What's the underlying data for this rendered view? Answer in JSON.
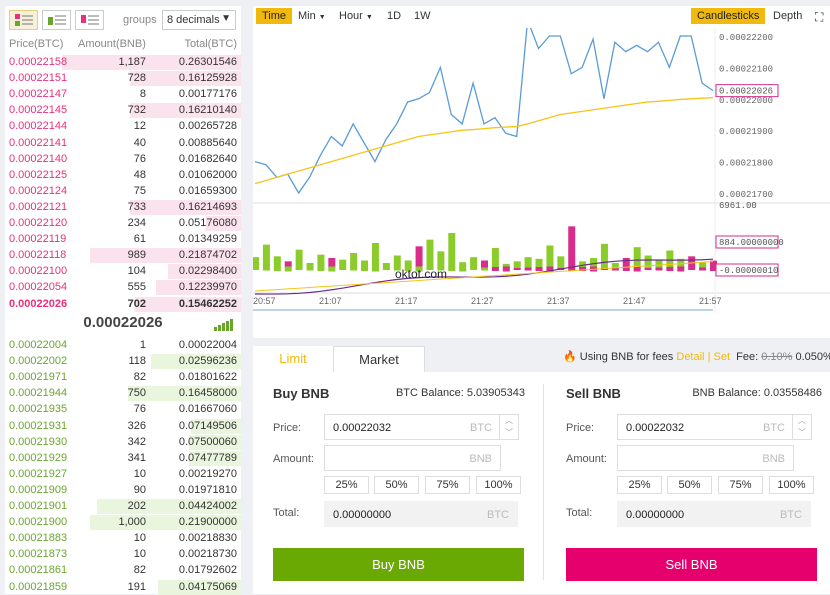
{
  "orderbook": {
    "groups_label": "groups",
    "decimals": "8 decimals",
    "headers": {
      "price": "Price(BTC)",
      "amount": "Amount(BNB)",
      "total": "Total(BTC)"
    },
    "asks": [
      {
        "price": "0.00022158",
        "amount": "1,187",
        "total": "0.26301546",
        "depth": 0.76
      },
      {
        "price": "0.00022151",
        "amount": "728",
        "total": "0.16125928",
        "depth": 0.47
      },
      {
        "price": "0.00022147",
        "amount": "8",
        "total": "0.00177176",
        "depth": 0.0
      },
      {
        "price": "0.00022145",
        "amount": "732",
        "total": "0.16210140",
        "depth": 0.47
      },
      {
        "price": "0.00022144",
        "amount": "12",
        "total": "0.00265728",
        "depth": 0.0
      },
      {
        "price": "0.00022141",
        "amount": "40",
        "total": "0.00885640",
        "depth": 0.0
      },
      {
        "price": "0.00022140",
        "amount": "76",
        "total": "0.01682640",
        "depth": 0.0
      },
      {
        "price": "0.00022125",
        "amount": "48",
        "total": "0.01062000",
        "depth": 0.0
      },
      {
        "price": "0.00022124",
        "amount": "75",
        "total": "0.01659300",
        "depth": 0.0
      },
      {
        "price": "0.00022121",
        "amount": "733",
        "total": "0.16214693",
        "depth": 0.47
      },
      {
        "price": "0.00022120",
        "amount": "234",
        "total": "0.05176080",
        "depth": 0.15
      },
      {
        "price": "0.00022119",
        "amount": "61",
        "total": "0.01349259",
        "depth": 0.0
      },
      {
        "price": "0.00022118",
        "amount": "989",
        "total": "0.21874702",
        "depth": 0.64
      },
      {
        "price": "0.00022100",
        "amount": "104",
        "total": "0.02298400",
        "depth": 0.31
      },
      {
        "price": "0.00022054",
        "amount": "555",
        "total": "0.12239970",
        "depth": 0.36
      },
      {
        "price": "0.00022026",
        "amount": "702",
        "total": "0.15462252",
        "depth": 0.45
      }
    ],
    "mid_price": "0.00022026",
    "bids": [
      {
        "price": "0.00022004",
        "amount": "1",
        "total": "0.00022004",
        "depth": 0.0
      },
      {
        "price": "0.00022002",
        "amount": "118",
        "total": "0.02596236",
        "depth": 0.38
      },
      {
        "price": "0.00021971",
        "amount": "82",
        "total": "0.01801622",
        "depth": 0.0
      },
      {
        "price": "0.00021944",
        "amount": "750",
        "total": "0.16458000",
        "depth": 0.48
      },
      {
        "price": "0.00021935",
        "amount": "76",
        "total": "0.01667060",
        "depth": 0.0
      },
      {
        "price": "0.00021931",
        "amount": "326",
        "total": "0.07149506",
        "depth": 0.21
      },
      {
        "price": "0.00021930",
        "amount": "342",
        "total": "0.07500060",
        "depth": 0.22
      },
      {
        "price": "0.00021929",
        "amount": "341",
        "total": "0.07477789",
        "depth": 0.22
      },
      {
        "price": "0.00021927",
        "amount": "10",
        "total": "0.00219270",
        "depth": 0.0
      },
      {
        "price": "0.00021909",
        "amount": "90",
        "total": "0.01971810",
        "depth": 0.0
      },
      {
        "price": "0.00021901",
        "amount": "202",
        "total": "0.04424002",
        "depth": 0.61
      },
      {
        "price": "0.00021900",
        "amount": "1,000",
        "total": "0.21900000",
        "depth": 0.64
      },
      {
        "price": "0.00021883",
        "amount": "10",
        "total": "0.00218830",
        "depth": 0.0
      },
      {
        "price": "0.00021873",
        "amount": "10",
        "total": "0.00218730",
        "depth": 0.0
      },
      {
        "price": "0.00021861",
        "amount": "82",
        "total": "0.01792602",
        "depth": 0.0
      },
      {
        "price": "0.00021859",
        "amount": "191",
        "total": "0.04175069",
        "depth": 0.35
      }
    ]
  },
  "chart": {
    "toolbar": {
      "time": "Time",
      "min": "Min",
      "hour": "Hour",
      "d1": "1D",
      "w1": "1W",
      "candlesticks": "Candlesticks",
      "depth": "Depth"
    },
    "watermark": "oktot.com",
    "colors": {
      "price_line": "#5b9bd5",
      "ma_line": "#f5c518",
      "vol_up": "#8ccc2a",
      "vol_down": "#d62e8a",
      "macd_line": "#6a2c8c"
    }
  },
  "chart_data": {
    "type": "line",
    "x_ticks": [
      "20:57",
      "21:07",
      "21:17",
      "21:27",
      "21:37",
      "21:47",
      "21:57"
    ],
    "y_ticks": [
      "0.00022200",
      "0.00022100",
      "0.00022000",
      "0.00021900",
      "0.00021800",
      "0.00021700"
    ],
    "last_price_tag": "0.00022026",
    "volume_axis_top": "6961.00",
    "volume_tag": "884.00000000",
    "macd_tag": "-0.00000010",
    "price": [
      0.000218,
      0.0002179,
      0.0002175,
      0.0002176,
      0.000217,
      0.0002175,
      0.0002182,
      0.0002188,
      0.0002185,
      0.0002192,
      0.0002186,
      0.000218,
      0.0002187,
      0.0002192,
      0.0002199,
      0.00022,
      0.0002202,
      0.000221,
      0.0002195,
      0.0002192,
      0.0002205,
      0.0002192,
      0.0002194,
      0.0002189,
      0.0002188,
      0.0002225,
      0.0002216,
      0.000222,
      0.000222,
      0.0002208,
      0.000221,
      0.0002219,
      0.00022,
      0.0002218,
      0.0002215,
      0.0002217,
      0.0002215,
      0.0002218,
      0.000221,
      0.000222,
      0.000222,
      0.0002205,
      0.00022026
    ],
    "ma": [
      0.0002173,
      0.0002174,
      0.0002175,
      0.0002176,
      0.0002177,
      0.0002178,
      0.0002179,
      0.000218,
      0.0002181,
      0.0002182,
      0.0002183,
      0.0002184,
      0.0002185,
      0.0002186,
      0.0002187,
      0.0002188,
      0.00021885,
      0.0002189,
      0.00021895,
      0.000219,
      0.00021902,
      0.00021905,
      0.00021908,
      0.0002191,
      0.00021912,
      0.0002192,
      0.0002193,
      0.0002194,
      0.0002195,
      0.00021955,
      0.0002196,
      0.00021965,
      0.0002197,
      0.00021975,
      0.0002198,
      0.00021985,
      0.0002199,
      0.00021992,
      0.00021995,
      0.00021998,
      0.00022,
      0.00022002,
      0.00022004
    ],
    "volume": [
      1300,
      2800,
      1400,
      800,
      2200,
      600,
      1600,
      1200,
      1000,
      1800,
      900,
      3000,
      600,
      1500,
      900,
      2600,
      3400,
      2000,
      4200,
      700,
      1300,
      900,
      2400,
      500,
      800,
      1300,
      1100,
      2700,
      1400,
      5000,
      800,
      1200,
      2900,
      600,
      1200,
      2500,
      1500,
      900,
      2100,
      1100,
      1400,
      700,
      884
    ],
    "volume_down": [
      false,
      false,
      false,
      true,
      false,
      false,
      false,
      true,
      false,
      false,
      false,
      false,
      false,
      false,
      false,
      true,
      false,
      false,
      false,
      false,
      false,
      true,
      false,
      false,
      false,
      false,
      false,
      false,
      false,
      true,
      false,
      false,
      false,
      false,
      true,
      false,
      false,
      false,
      false,
      false,
      true,
      false,
      true
    ]
  },
  "trade": {
    "tab_limit": "Limit",
    "tab_market": "Market",
    "fee_text": "Using BNB for fees",
    "fee_detail": "Detail",
    "fee_sep": "|",
    "fee_set": "Set",
    "fee_label": "Fee:",
    "fee_old": "0.10%",
    "fee_new": "0.050%",
    "buy": {
      "title": "Buy BNB",
      "balance": "BTC Balance: 5.03905343",
      "price_label": "Price:",
      "price_value": "0.00022032",
      "price_unit": "BTC",
      "amount_label": "Amount:",
      "amount_unit": "BNB",
      "pcts": [
        "25%",
        "50%",
        "75%",
        "100%"
      ],
      "total_label": "Total:",
      "total_value": "0.00000000",
      "total_unit": "BTC",
      "button": "Buy BNB"
    },
    "sell": {
      "title": "Sell BNB",
      "balance": "BNB Balance: 0.03558486",
      "price_label": "Price:",
      "price_value": "0.00022032",
      "price_unit": "BTC",
      "amount_label": "Amount:",
      "amount_unit": "BNB",
      "pcts": [
        "25%",
        "50%",
        "75%",
        "100%"
      ],
      "total_label": "Total:",
      "total_value": "0.00000000",
      "total_unit": "BTC",
      "button": "Sell BNB"
    }
  }
}
